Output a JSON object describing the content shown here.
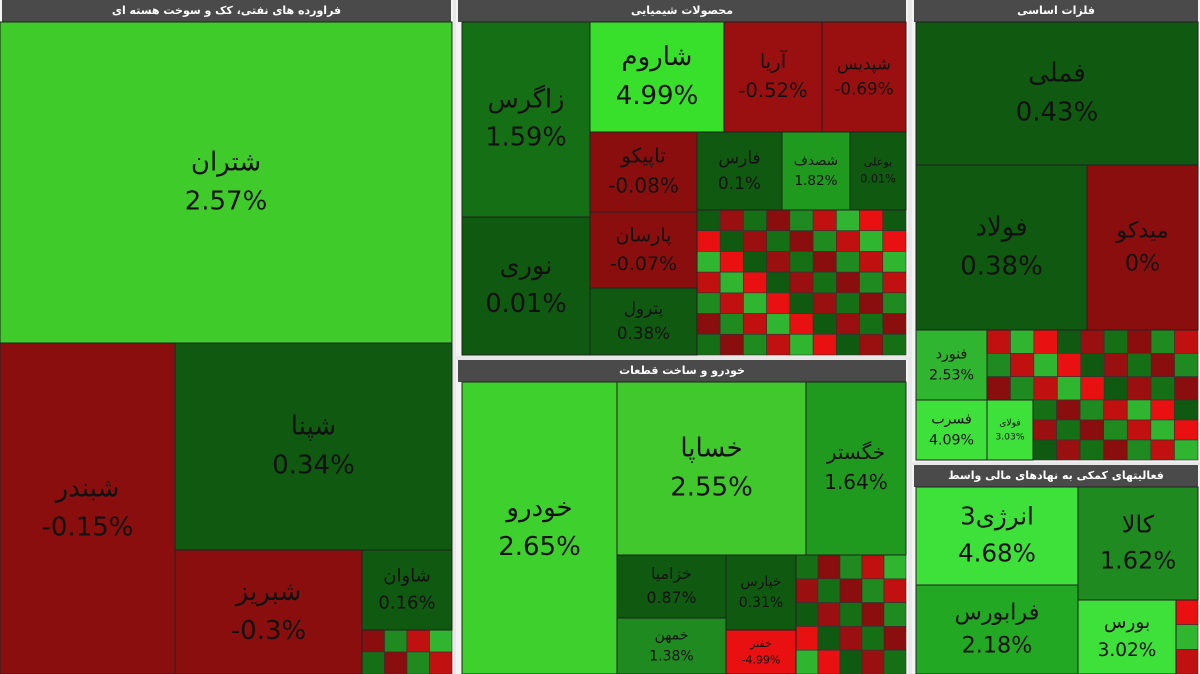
{
  "chart_data": [
    {
      "type": "treemap",
      "title": "فراورده های نفتی، کک و سوخت هسته ای",
      "categories": [
        "شتران",
        "شبندر",
        "شپنا",
        "شبریز",
        "شاوان"
      ],
      "values": [
        2.57,
        -0.15,
        0.34,
        -0.3,
        0.16
      ],
      "value_labels": [
        "2.57%",
        "-0.15%",
        "0.34%",
        "-0.3%",
        "0.16%"
      ],
      "colors": [
        "#3fcc2a",
        "#8a0e0e",
        "#0f5a10",
        "#8a0e0e",
        "#0f5a10"
      ]
    },
    {
      "type": "treemap",
      "title": "محصولات شیمیایی",
      "categories": [
        "زاگرس",
        "نوری",
        "شاروم",
        "آریا",
        "شپدیس",
        "تاپیکو",
        "پارسان",
        "پترول",
        "فارس",
        "شصدف",
        "بوعلی"
      ],
      "values": [
        1.59,
        0.01,
        4.99,
        -0.52,
        -0.69,
        -0.08,
        -0.07,
        0.38,
        0.1,
        1.82,
        0.01
      ],
      "value_labels": [
        "1.59%",
        "0.01%",
        "4.99%",
        "-0.52%",
        "-0.69%",
        "-0.08%",
        "-0.07%",
        "0.38%",
        "0.1%",
        "1.82%",
        "0.01%"
      ],
      "colors": [
        "#157015",
        "#0f5a10",
        "#38e02b",
        "#9a0f0f",
        "#9a0f0f",
        "#8a0e0e",
        "#8a0e0e",
        "#0f5a10",
        "#0f5a10",
        "#1f9a1f",
        "#0f5a10"
      ]
    },
    {
      "type": "treemap",
      "title": "فلزات اساسی",
      "categories": [
        "فملی",
        "فولاد",
        "میدکو",
        "فنورد",
        "فسرب",
        "فولای"
      ],
      "values": [
        0.43,
        0.38,
        0,
        2.53,
        4.09,
        3.03
      ],
      "value_labels": [
        "0.43%",
        "0.38%",
        "0%",
        "2.53%",
        "4.09%",
        "3.03%"
      ],
      "colors": [
        "#0f5a10",
        "#0f5a10",
        "#8a0e0e",
        "#2fb52f",
        "#3ee03a",
        "#3ee03a"
      ]
    },
    {
      "type": "treemap",
      "title": "خودرو و ساخت قطعات",
      "categories": [
        "خودرو",
        "خساپا",
        "خگستر",
        "خزامیا",
        "خمهن",
        "خپارس",
        "خفنر"
      ],
      "values": [
        2.65,
        2.55,
        1.64,
        0.87,
        1.38,
        0.31,
        -4.99
      ],
      "value_labels": [
        "2.65%",
        "2.55%",
        "1.64%",
        "0.87%",
        "1.38%",
        "0.31%",
        "-4.99%"
      ],
      "colors": [
        "#3ed02c",
        "#40c82c",
        "#1f9a1f",
        "#0f5a10",
        "#1f8a1f",
        "#0f5a10",
        "#e81010"
      ]
    },
    {
      "type": "treemap",
      "title": "فعالیتهای کمکی به نهادهای مالی واسط",
      "categories": [
        "انرژی3",
        "کالا",
        "فرابورس",
        "بورس"
      ],
      "values": [
        4.68,
        1.62,
        2.18,
        3.02
      ],
      "value_labels": [
        "4.68%",
        "1.62%",
        "2.18%",
        "3.02%"
      ],
      "colors": [
        "#3ee03a",
        "#1f8a1f",
        "#22a822",
        "#3ee03a"
      ]
    }
  ]
}
